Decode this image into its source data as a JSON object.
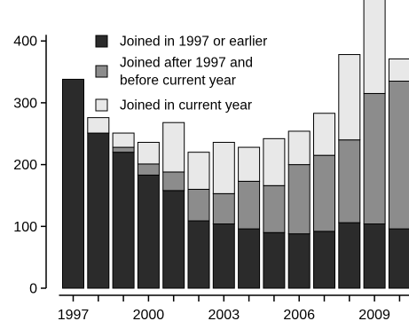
{
  "chart_data": {
    "type": "bar",
    "stacked": true,
    "categories": [
      "1997",
      "1998",
      "1999",
      "2000",
      "2001",
      "2002",
      "2003",
      "2004",
      "2005",
      "2006",
      "2007",
      "2008",
      "2009",
      "2010"
    ],
    "series": [
      {
        "name": "Joined in 1997 or earlier",
        "color": "#2b2b2b",
        "values": [
          338,
          251,
          220,
          183,
          158,
          109,
          104,
          96,
          90,
          88,
          92,
          106,
          104,
          96
        ]
      },
      {
        "name": "Joined after 1997 and before current year",
        "color": "#8c8c8c",
        "values": [
          0,
          0,
          8,
          18,
          30,
          51,
          49,
          77,
          76,
          112,
          123,
          134,
          211,
          239
        ]
      },
      {
        "name": "Joined in current year",
        "color": "#e8e8e8",
        "values": [
          0,
          25,
          23,
          35,
          80,
          60,
          83,
          55,
          76,
          54,
          68,
          138,
          154,
          36
        ]
      }
    ],
    "x_tick_labels": [
      "1997",
      "2000",
      "2003",
      "2006",
      "2009"
    ],
    "y_ticks": [
      0,
      100,
      200,
      300,
      400
    ],
    "ylim": [
      0,
      460
    ],
    "legend_position": "top-left"
  }
}
